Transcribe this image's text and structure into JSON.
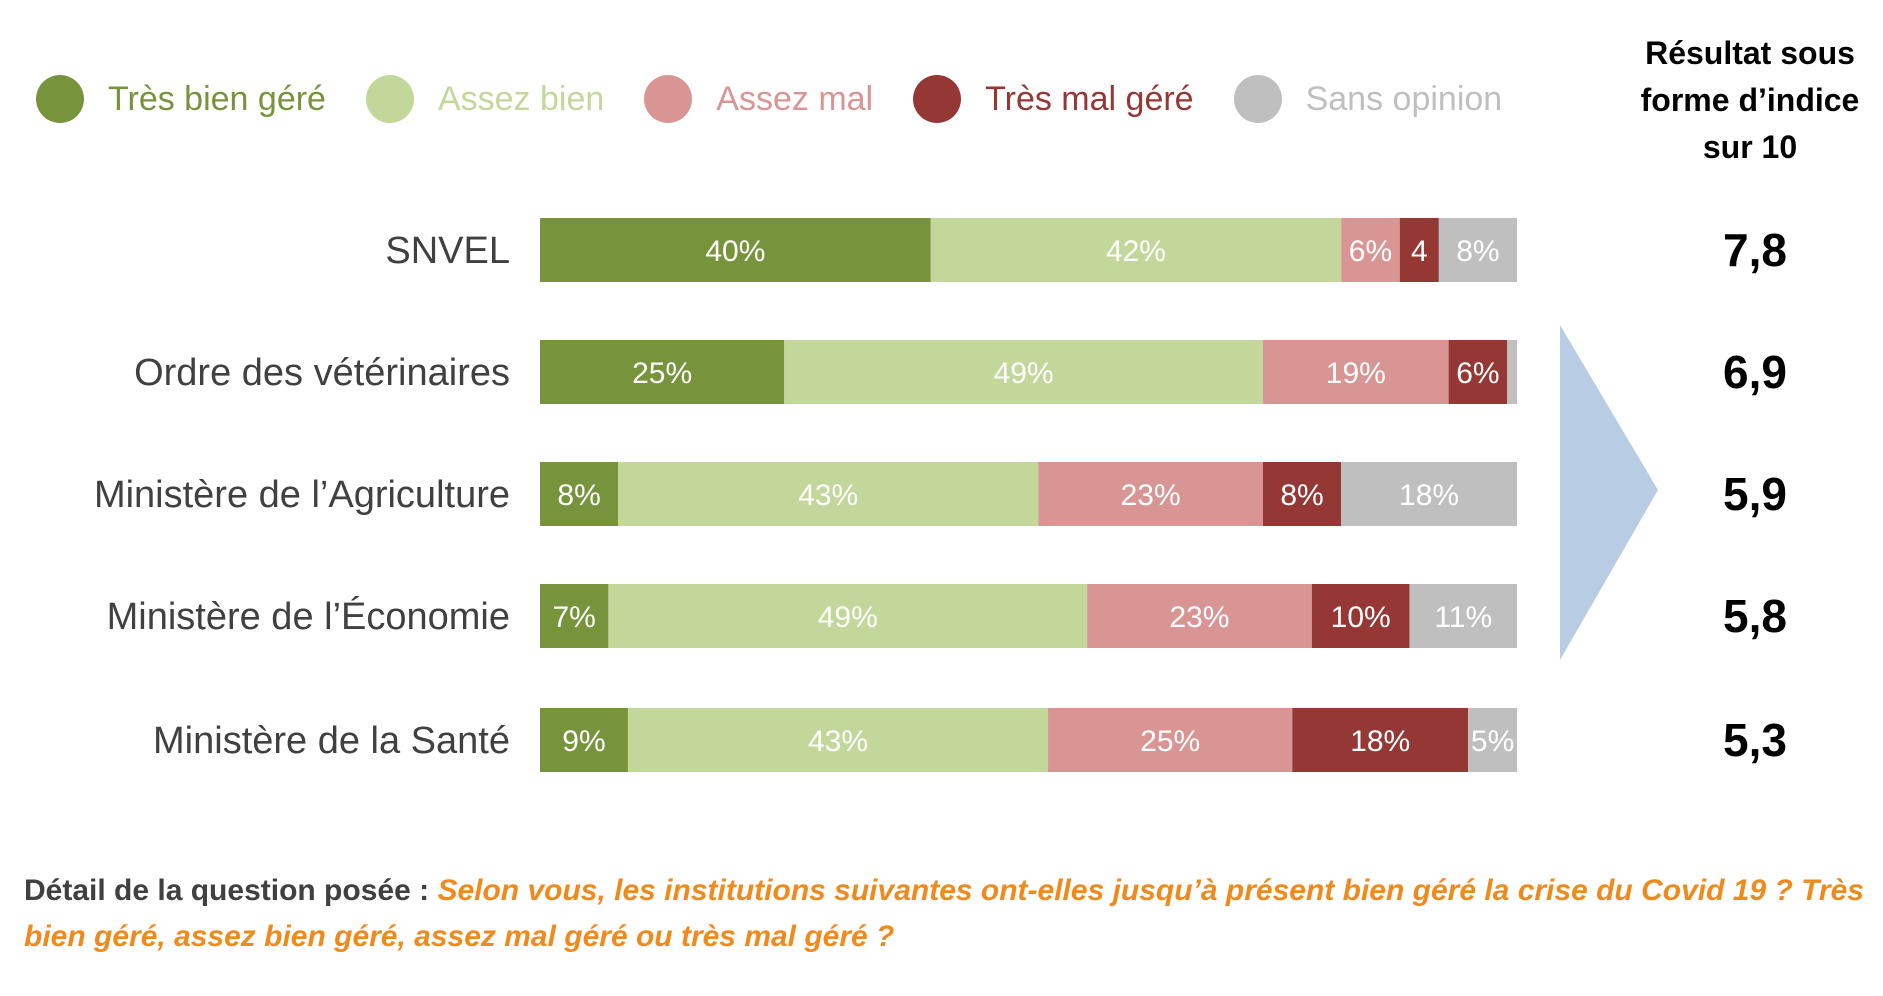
{
  "chart_data": {
    "type": "bar",
    "orientation": "horizontal",
    "stacked": true,
    "categories": [
      "SNVEL",
      "Ordre des vétérinaires",
      "Ministère de l’Agriculture",
      "Ministère de l’Économie",
      "Ministère de la Santé"
    ],
    "series": [
      {
        "name": "Très bien géré",
        "color": "#77933c",
        "values": [
          40,
          25,
          8,
          7,
          9
        ],
        "labels": [
          "40%",
          "25%",
          "8%",
          "7%",
          "9%"
        ]
      },
      {
        "name": "Assez bien",
        "color": "#c4d79b",
        "values": [
          42,
          49,
          43,
          49,
          43
        ],
        "labels": [
          "42%",
          "49%",
          "43%",
          "49%",
          "43%"
        ]
      },
      {
        "name": "Assez mal",
        "color": "#d99594",
        "values": [
          6,
          19,
          23,
          23,
          25
        ],
        "labels": [
          "6%",
          "19%",
          "23%",
          "23%",
          "25%"
        ]
      },
      {
        "name": "Très mal géré",
        "color": "#953735",
        "values": [
          4,
          6,
          8,
          10,
          18
        ],
        "labels": [
          "4",
          "6%",
          "8%",
          "10%",
          "18%"
        ]
      },
      {
        "name": "Sans opinion",
        "color": "#bfbfbf",
        "values": [
          8,
          1,
          18,
          11,
          5
        ],
        "labels": [
          "8%",
          "",
          "18%",
          "11%",
          "5%"
        ]
      }
    ],
    "legend_position": "top",
    "grid": false,
    "index_title": "Résultat sous forme d’indice sur 10",
    "index_values": [
      "7,8",
      "6,9",
      "5,9",
      "5,8",
      "5,3"
    ]
  },
  "colors": {
    "arrow": "#b8cce4",
    "question_label": "#404040",
    "question_text": "#f08a1c"
  },
  "question": {
    "label": "Détail de la question posée : ",
    "text": "Selon vous, les institutions suivantes ont-elles jusqu’à présent bien géré la crise du Covid 19 ? Très bien géré, assez bien géré, assez mal géré ou très mal géré ?"
  }
}
